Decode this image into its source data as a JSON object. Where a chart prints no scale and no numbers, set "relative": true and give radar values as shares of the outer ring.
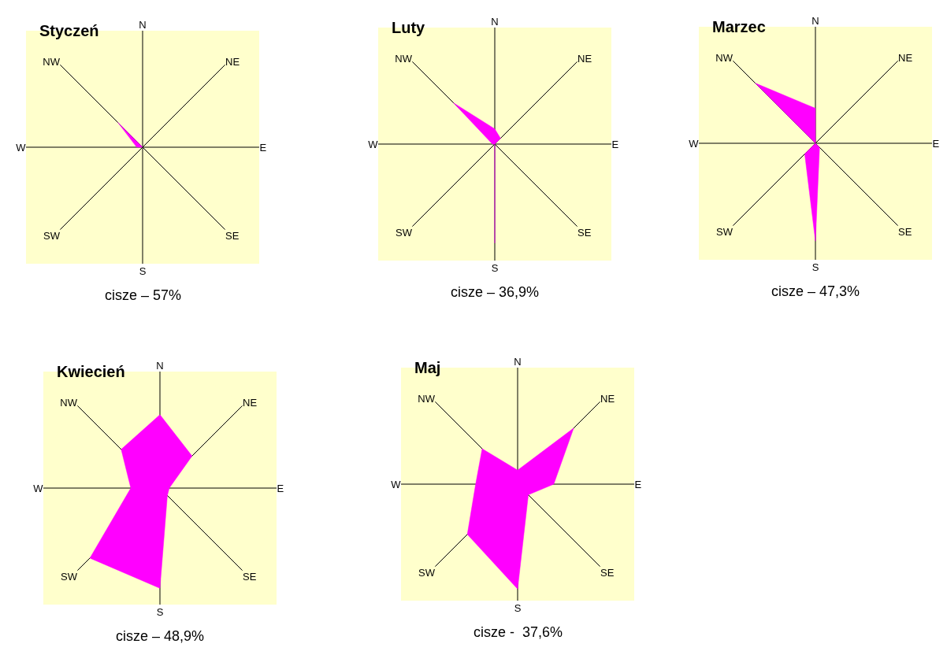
{
  "chart_data": [
    {
      "type": "radar",
      "title": "Styczeń",
      "categories": [
        "N",
        "NE",
        "E",
        "SE",
        "S",
        "SW",
        "W",
        "NW"
      ],
      "relative": true,
      "series": [
        {
          "color": "#ff00ff",
          "values": [
            0,
            0,
            0,
            0,
            0,
            0,
            0.05,
            0.3
          ]
        }
      ],
      "annotations": [
        "cisze – 57%"
      ]
    },
    {
      "type": "radar",
      "title": "Luty",
      "categories": [
        "N",
        "NE",
        "E",
        "SE",
        "S",
        "SW",
        "W",
        "NW"
      ],
      "relative": true,
      "series": [
        {
          "color": "#ff00ff",
          "values": [
            0.13,
            0.07,
            0,
            0,
            0.85,
            0,
            0.02,
            0.5
          ]
        }
      ],
      "annotations": [
        "cisze – 36,9%"
      ]
    },
    {
      "type": "radar",
      "title": "Marzec",
      "categories": [
        "N",
        "NE",
        "E",
        "SE",
        "S",
        "SW",
        "W",
        "NW"
      ],
      "relative": true,
      "series": [
        {
          "color": "#ff00ff",
          "values": [
            0.3,
            0,
            0,
            0.05,
            0.84,
            0.13,
            0,
            0.73
          ]
        }
      ],
      "annotations": [
        "cisze – 47,3%"
      ]
    },
    {
      "type": "radar",
      "title": "Kwiecień",
      "categories": [
        "N",
        "NE",
        "E",
        "SE",
        "S",
        "SW",
        "W",
        "NW"
      ],
      "relative": true,
      "series": [
        {
          "color": "#ff00ff",
          "values": [
            0.63,
            0.39,
            0.08,
            0.09,
            0.86,
            0.85,
            0.25,
            0.47
          ]
        }
      ],
      "annotations": [
        "cisze – 48,9%"
      ]
    },
    {
      "type": "radar",
      "title": "Maj",
      "categories": [
        "N",
        "NE",
        "E",
        "SE",
        "S",
        "SW",
        "W",
        "NW"
      ],
      "relative": true,
      "series": [
        {
          "color": "#ff00ff",
          "values": [
            0.12,
            0.68,
            0.31,
            0.13,
            0.9,
            0.61,
            0.36,
            0.43
          ]
        }
      ],
      "annotations": [
        "cisze -  37,6%"
      ]
    }
  ]
}
